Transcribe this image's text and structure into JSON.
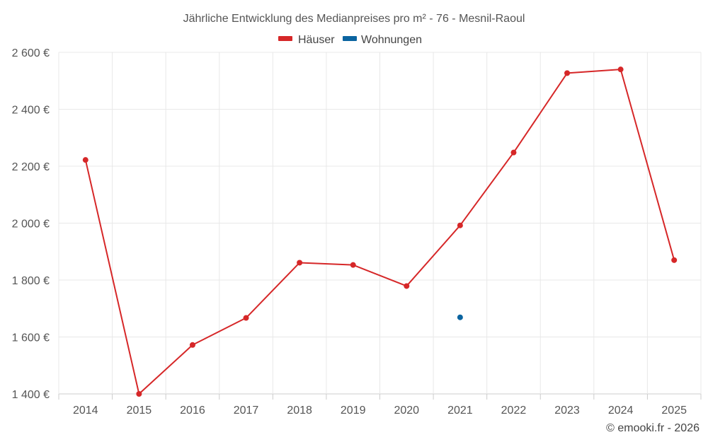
{
  "chart_data": {
    "type": "line",
    "title": "Jährliche Entwicklung des Medianpreises pro m² - 76 - Mesnil-Raoul",
    "categories": [
      "2014",
      "2015",
      "2016",
      "2017",
      "2018",
      "2019",
      "2020",
      "2021",
      "2022",
      "2023",
      "2024",
      "2025"
    ],
    "ylim": [
      1400,
      2600
    ],
    "yticks": [
      1400,
      1600,
      1800,
      2000,
      2200,
      2400,
      2600
    ],
    "ytick_labels": [
      "1 400 €",
      "1 600 €",
      "1 800 €",
      "2 000 €",
      "2 200 €",
      "2 400 €",
      "2 600 €"
    ],
    "grid": true,
    "legend_position": "top-center",
    "series": [
      {
        "name": "Häuser",
        "color": "#d62728",
        "values": [
          2222,
          1400,
          1572,
          1667,
          1861,
          1853,
          1779,
          1992,
          2248,
          2527,
          2540,
          1870
        ]
      },
      {
        "name": "Wohnungen",
        "color": "#0b64a0",
        "values": [
          null,
          null,
          null,
          null,
          null,
          null,
          null,
          1669,
          null,
          null,
          null,
          null
        ]
      }
    ],
    "credit": "© emooki.fr - 2026"
  }
}
